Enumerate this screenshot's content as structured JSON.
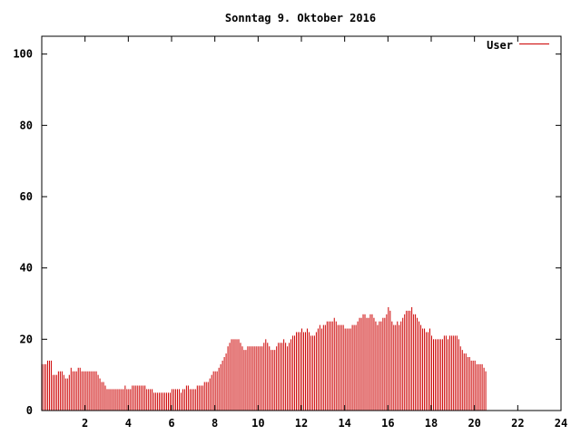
{
  "chart_data": {
    "type": "bar",
    "title": "Sonntag 9. Oktober 2016",
    "xlabel": "",
    "ylabel": "",
    "xlim": [
      0,
      24
    ],
    "ylim": [
      0,
      105
    ],
    "xticks": [
      2,
      4,
      6,
      8,
      10,
      12,
      14,
      16,
      18,
      20,
      22,
      24
    ],
    "yticks": [
      0,
      20,
      40,
      60,
      80,
      100
    ],
    "grid": false,
    "legend_position": "top-right",
    "series": [
      {
        "name": "User",
        "color": "#cc0000",
        "sample_interval_hours": 0.0833333,
        "values": [
          13,
          13,
          13,
          14,
          14,
          14,
          10,
          10,
          10,
          11,
          11,
          11,
          10,
          9,
          9,
          10,
          12,
          11,
          11,
          11,
          12,
          12,
          11,
          11,
          11,
          11,
          11,
          11,
          11,
          11,
          11,
          10,
          9,
          8,
          8,
          7,
          6,
          6,
          6,
          6,
          6,
          6,
          6,
          6,
          6,
          6,
          7,
          6,
          6,
          6,
          7,
          7,
          7,
          7,
          7,
          7,
          7,
          7,
          6,
          6,
          6,
          6,
          5,
          5,
          5,
          5,
          5,
          5,
          5,
          5,
          5,
          5,
          6,
          6,
          6,
          6,
          6,
          5,
          6,
          6,
          7,
          7,
          6,
          6,
          6,
          6,
          7,
          7,
          7,
          7,
          8,
          8,
          8,
          9,
          10,
          11,
          11,
          11,
          12,
          13,
          14,
          15,
          16,
          18,
          19,
          20,
          20,
          20,
          20,
          20,
          19,
          18,
          17,
          17,
          18,
          18,
          18,
          18,
          18,
          18,
          18,
          18,
          18,
          19,
          20,
          19,
          18,
          17,
          17,
          17,
          18,
          19,
          19,
          19,
          20,
          19,
          18,
          19,
          20,
          21,
          21,
          22,
          22,
          22,
          23,
          22,
          22,
          23,
          22,
          21,
          21,
          21,
          22,
          23,
          24,
          23,
          24,
          24,
          25,
          25,
          25,
          25,
          26,
          25,
          24,
          24,
          24,
          24,
          23,
          23,
          23,
          23,
          24,
          24,
          24,
          25,
          26,
          26,
          27,
          27,
          26,
          26,
          27,
          27,
          26,
          25,
          24,
          25,
          25,
          26,
          26,
          27,
          29,
          28,
          25,
          24,
          24,
          25,
          24,
          25,
          26,
          27,
          28,
          28,
          28,
          29,
          27,
          27,
          26,
          25,
          24,
          23,
          23,
          22,
          22,
          23,
          21,
          20,
          20,
          20,
          20,
          20,
          20,
          21,
          21,
          20,
          21,
          21,
          21,
          21,
          21,
          20,
          18,
          17,
          16,
          16,
          15,
          15,
          14,
          14,
          14,
          13,
          13,
          13,
          13,
          12,
          11
        ]
      }
    ]
  }
}
